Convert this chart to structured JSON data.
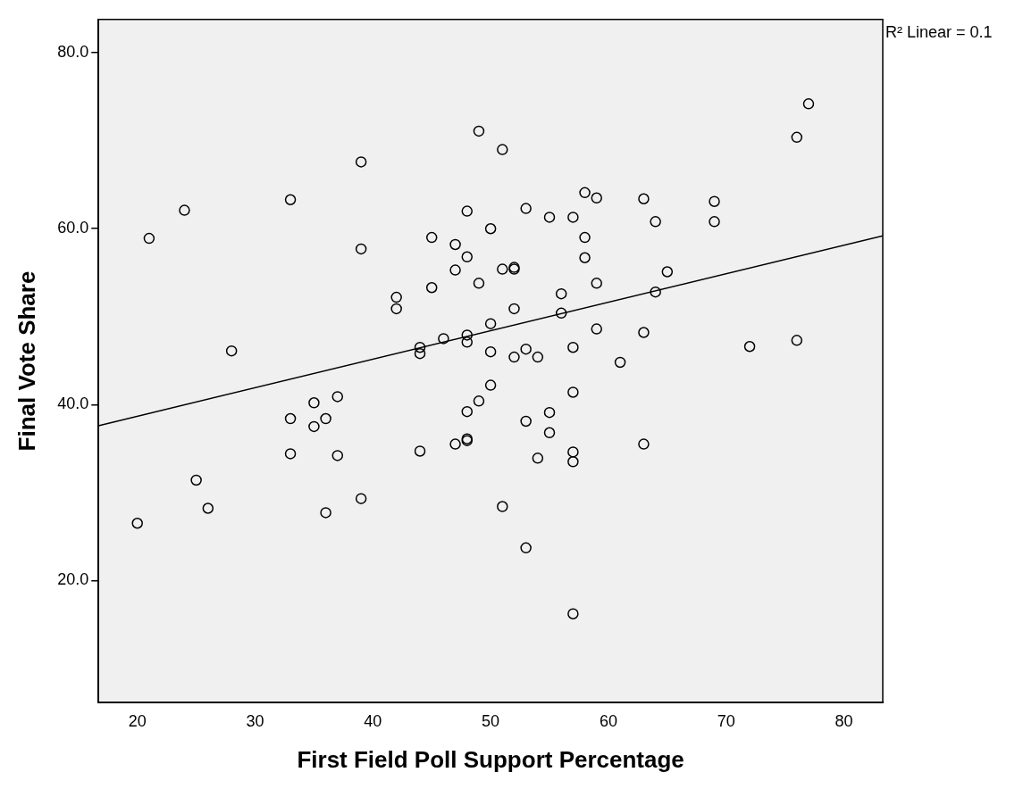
{
  "chart_data": {
    "type": "scatter",
    "xlabel": "First Field Poll Support Percentage",
    "ylabel": "Final Vote Share",
    "annotations": [
      "R² Linear = 0.1"
    ],
    "xlim": [
      16.7,
      83.3
    ],
    "xticks": [
      20,
      30,
      40,
      50,
      60,
      70,
      80
    ],
    "ylim": [
      6.1,
      83.8
    ],
    "yticks": [
      {
        "value": 20,
        "label": "20.0"
      },
      {
        "value": 40,
        "label": "40.0"
      },
      {
        "value": 60,
        "label": "60.0"
      },
      {
        "value": 80,
        "label": "80.0"
      }
    ],
    "grid": false,
    "legend": false,
    "marker": "circle",
    "series": [
      {
        "color": "#000000",
        "x": [
          20,
          21,
          24,
          25,
          26,
          28,
          33,
          33,
          33,
          35,
          35,
          36,
          36,
          37,
          37,
          39,
          39,
          39,
          42,
          42,
          44,
          44,
          44,
          45,
          45,
          46,
          47,
          47,
          47,
          48,
          48,
          48,
          48,
          48,
          48,
          48,
          49,
          49,
          49,
          50,
          50,
          50,
          50,
          51,
          51,
          51,
          52,
          52,
          52,
          52,
          53,
          53,
          53,
          53,
          54,
          54,
          55,
          55,
          55,
          56,
          56,
          57,
          57,
          57,
          57,
          57,
          57,
          58,
          58,
          58,
          59,
          59,
          59,
          61,
          63,
          63,
          63,
          64,
          64,
          65,
          69,
          69,
          72,
          76,
          76,
          77
        ],
        "values": [
          26.5,
          58.9,
          62.1,
          31.4,
          28.2,
          46.1,
          63.3,
          38.4,
          34.4,
          40.2,
          37.5,
          38.4,
          27.7,
          40.9,
          34.2,
          67.6,
          57.7,
          29.3,
          52.2,
          50.9,
          46.5,
          45.8,
          34.7,
          59.0,
          53.3,
          47.5,
          58.2,
          55.3,
          35.5,
          62.0,
          56.8,
          47.9,
          47.1,
          39.2,
          36.1,
          35.9,
          71.1,
          53.8,
          40.4,
          60.0,
          49.2,
          46.0,
          42.2,
          69.0,
          55.4,
          28.4,
          55.6,
          55.4,
          50.9,
          45.4,
          62.3,
          46.3,
          38.1,
          23.7,
          45.4,
          33.9,
          61.3,
          39.1,
          36.8,
          52.6,
          50.4,
          61.3,
          46.5,
          41.4,
          34.6,
          33.5,
          16.2,
          64.1,
          59.0,
          56.7,
          63.5,
          53.8,
          48.6,
          44.8,
          63.4,
          48.2,
          35.5,
          60.8,
          52.8,
          55.1,
          63.1,
          60.8,
          46.6,
          70.4,
          47.3,
          74.2
        ]
      },
      {
        "type": "line",
        "marker": "none",
        "color": "#000000",
        "x": [
          16.7,
          83.3
        ],
        "values": [
          37.6,
          59.2
        ]
      }
    ]
  }
}
